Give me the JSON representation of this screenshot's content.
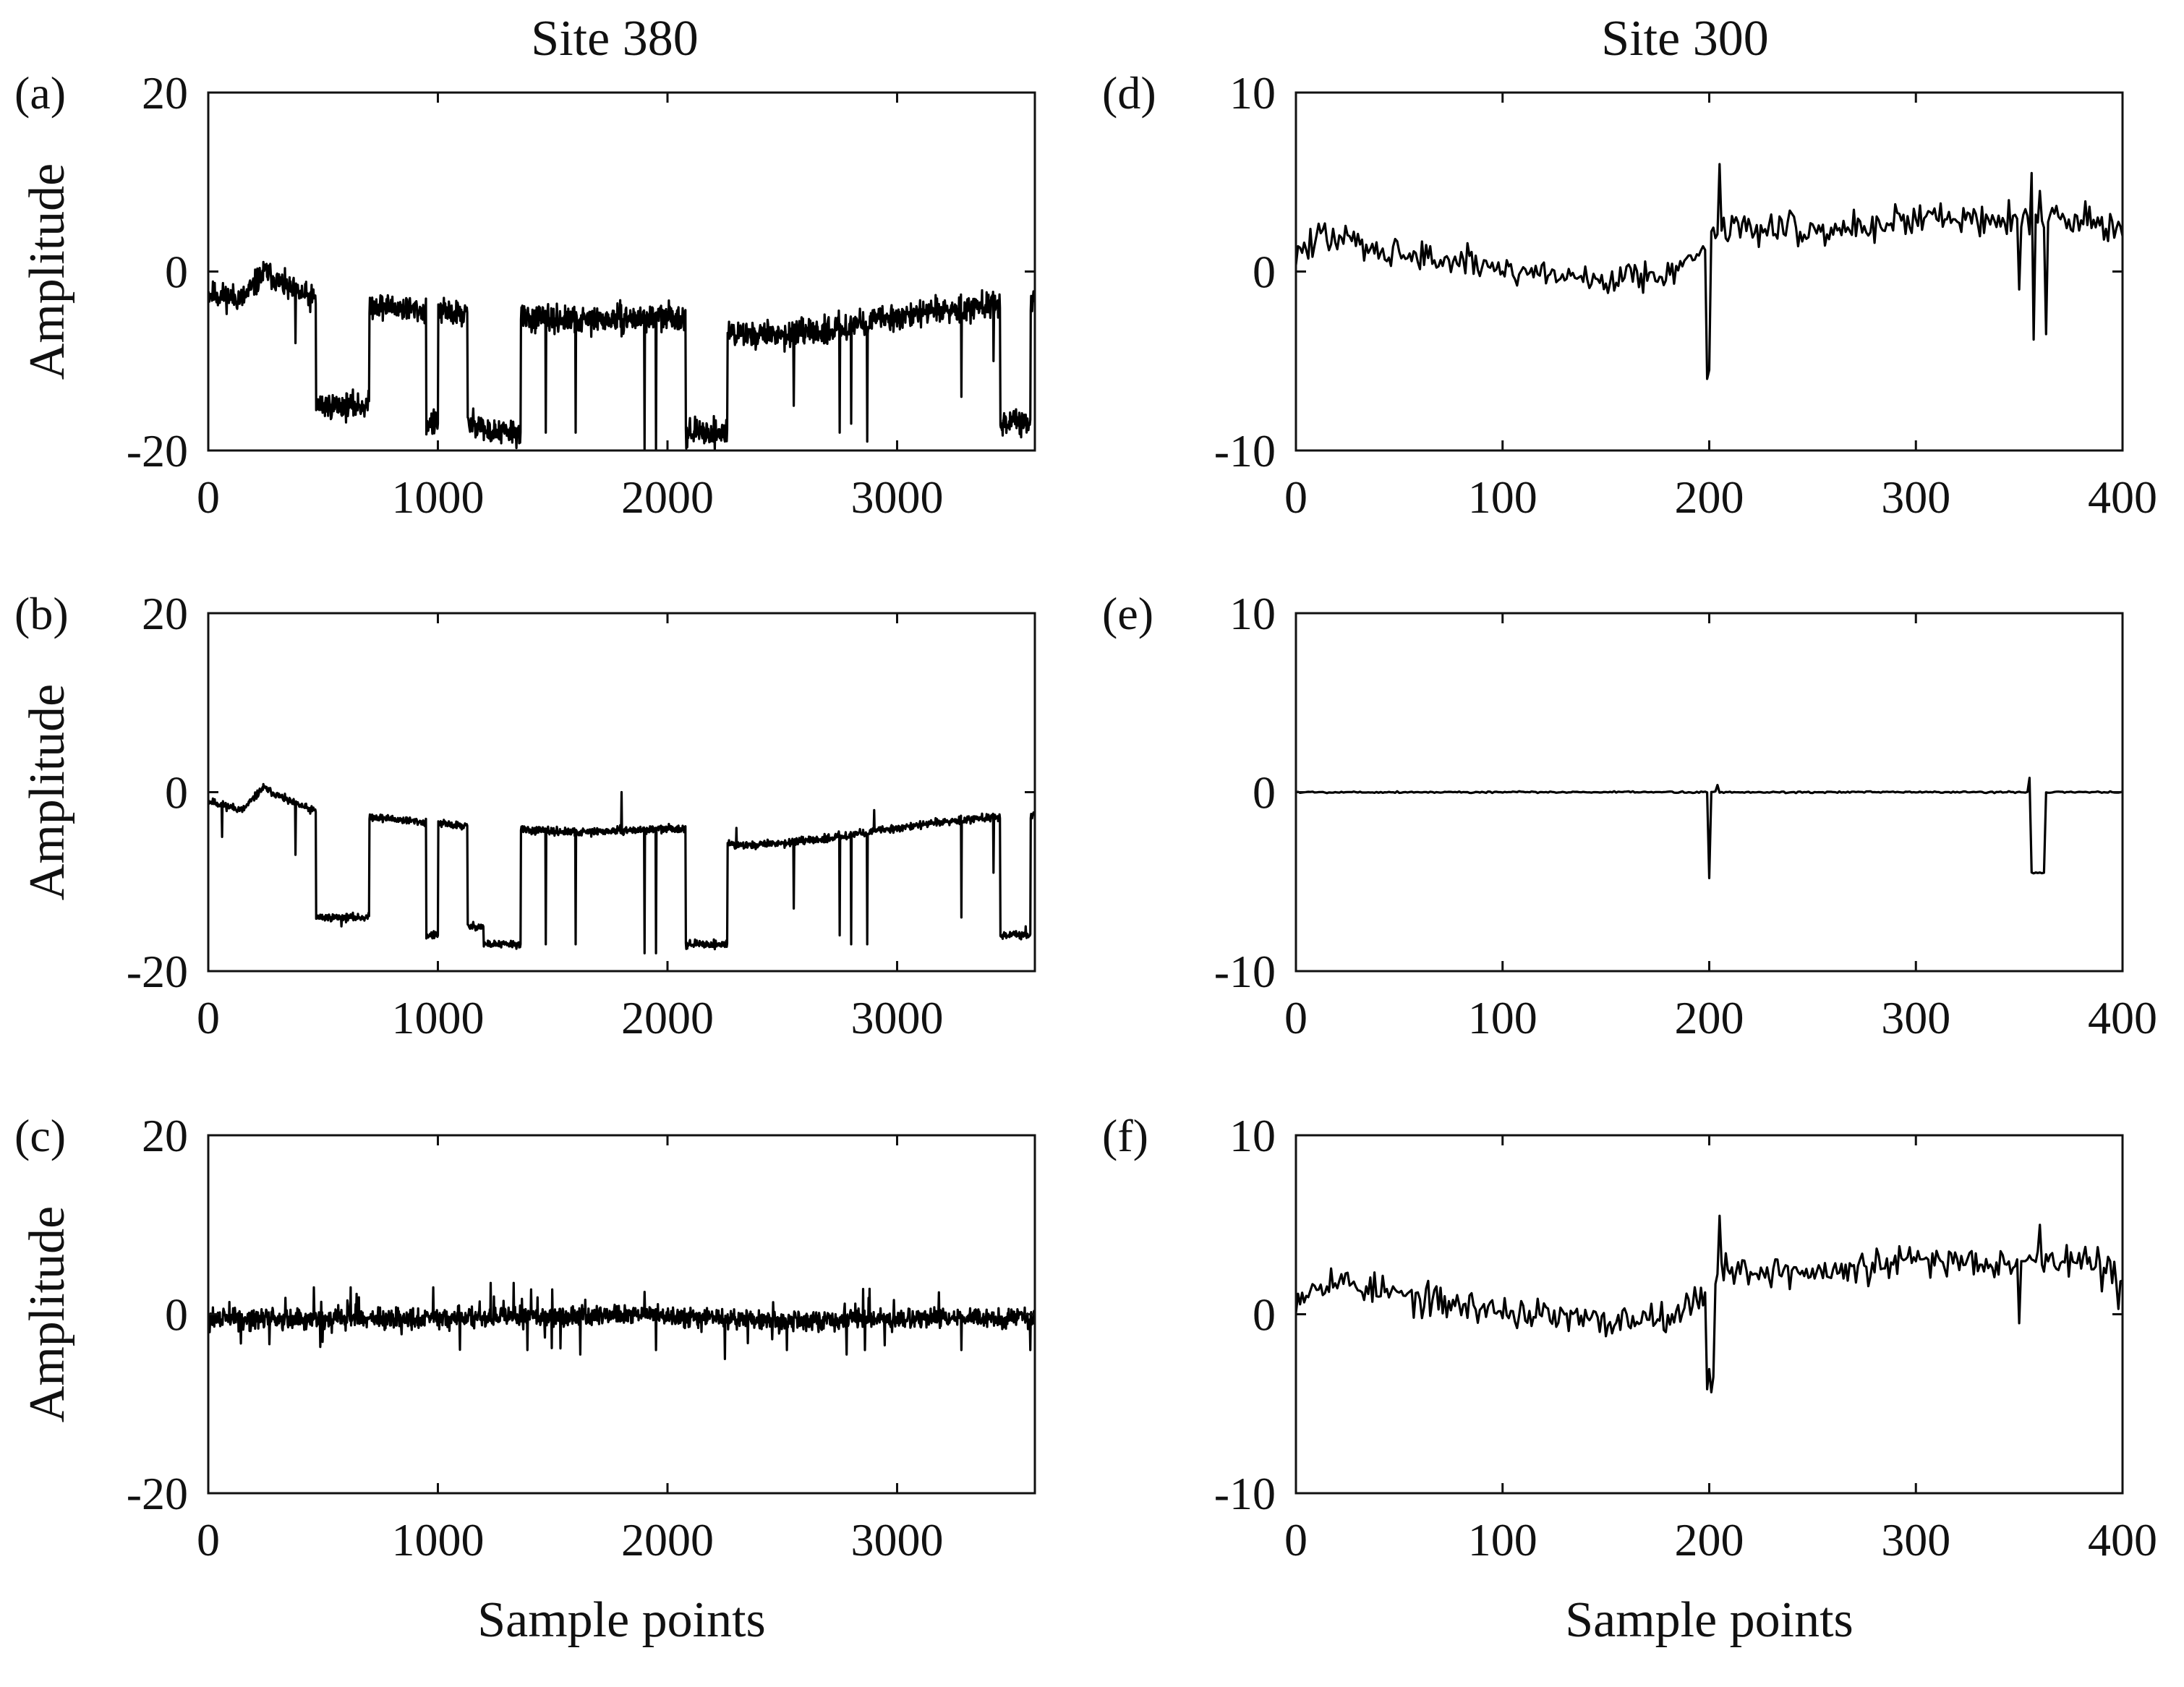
{
  "figure": {
    "left_title": "Site 380",
    "right_title": "Site 300",
    "ylabel": "Amplitude",
    "xlabel": "Sample points",
    "line_color": "#000000",
    "axis_color": "#111111"
  },
  "chart_data": [
    {
      "panel": "(a)",
      "site": "Site 380",
      "type": "line",
      "xlim": [
        0,
        3600
      ],
      "ylim": [
        -20,
        20
      ],
      "xticks": [
        "0",
        "1000",
        "2000",
        "3000"
      ],
      "yticks": [
        "20",
        "0",
        "-20"
      ],
      "ylabel": "Amplitude",
      "xlabel": "",
      "pattern": "base",
      "noise": 1.2,
      "seed": 11,
      "baseline": [
        [
          0,
          -2.5
        ],
        [
          150,
          -3
        ],
        [
          250,
          0
        ],
        [
          350,
          -2
        ],
        [
          450,
          -3
        ],
        [
          800,
          -4
        ],
        [
          1200,
          -5
        ],
        [
          1600,
          -5.5
        ],
        [
          2100,
          -5
        ],
        [
          2300,
          -7
        ],
        [
          2600,
          -7
        ],
        [
          3000,
          -5
        ],
        [
          3300,
          -4
        ],
        [
          3600,
          -3
        ]
      ],
      "segments": [
        [
          470,
          700,
          -15
        ],
        [
          950,
          1000,
          -17
        ],
        [
          1130,
          1200,
          -17
        ],
        [
          1200,
          1360,
          -18
        ],
        [
          2080,
          2260,
          -18
        ],
        [
          3450,
          3580,
          -17
        ]
      ],
      "spikes": [
        [
          380,
          -8
        ],
        [
          580,
          -16
        ],
        [
          1000,
          -17
        ],
        [
          1470,
          -18
        ],
        [
          1600,
          -18
        ],
        [
          1900,
          -20
        ],
        [
          1950,
          -20
        ],
        [
          2550,
          -15
        ],
        [
          2750,
          -18
        ],
        [
          2800,
          -17
        ],
        [
          2870,
          -19
        ],
        [
          3280,
          -14
        ],
        [
          3420,
          -10
        ],
        [
          3560,
          -16
        ]
      ]
    },
    {
      "panel": "(b)",
      "site": "Site 380",
      "type": "line",
      "xlim": [
        0,
        3600
      ],
      "ylim": [
        -20,
        20
      ],
      "xticks": [
        "0",
        "1000",
        "2000",
        "3000"
      ],
      "yticks": [
        "20",
        "0",
        "-20"
      ],
      "ylabel": "Amplitude",
      "xlabel": "",
      "pattern": "base",
      "noise": 0.35,
      "seed": 11,
      "baseline": [
        [
          0,
          -1
        ],
        [
          150,
          -2
        ],
        [
          240,
          0.5
        ],
        [
          350,
          -1
        ],
        [
          450,
          -2
        ],
        [
          800,
          -3
        ],
        [
          1200,
          -4
        ],
        [
          1600,
          -4.5
        ],
        [
          2100,
          -4
        ],
        [
          2300,
          -6
        ],
        [
          2600,
          -5.5
        ],
        [
          3000,
          -4
        ],
        [
          3300,
          -3
        ],
        [
          3600,
          -2.5
        ]
      ],
      "segments": [
        [
          470,
          700,
          -14
        ],
        [
          950,
          1000,
          -16
        ],
        [
          1130,
          1200,
          -15
        ],
        [
          1200,
          1360,
          -17
        ],
        [
          2080,
          2260,
          -17
        ],
        [
          3450,
          3580,
          -16
        ]
      ],
      "spikes": [
        [
          60,
          -5
        ],
        [
          380,
          -7
        ],
        [
          580,
          -15
        ],
        [
          1000,
          -16
        ],
        [
          1470,
          -17
        ],
        [
          1600,
          -17
        ],
        [
          1900,
          -18
        ],
        [
          1950,
          -18
        ],
        [
          2550,
          -13
        ],
        [
          2750,
          -16
        ],
        [
          2800,
          -17
        ],
        [
          2870,
          -17
        ],
        [
          3280,
          -14
        ],
        [
          3420,
          -9
        ],
        [
          3560,
          -15
        ],
        [
          1800,
          0
        ],
        [
          2300,
          -4
        ],
        [
          2900,
          -2
        ]
      ]
    },
    {
      "panel": "(c)",
      "site": "Site 380",
      "type": "line",
      "xlim": [
        0,
        3600
      ],
      "ylim": [
        -20,
        20
      ],
      "xticks": [
        "0",
        "1000",
        "2000",
        "3000"
      ],
      "yticks": [
        "20",
        "0",
        "-20"
      ],
      "ylabel": "Amplitude",
      "xlabel": "Sample points",
      "pattern": "noise",
      "noise": 0.9,
      "seed": 29,
      "baseline": [
        [
          0,
          -0.5
        ],
        [
          1000,
          -0.5
        ],
        [
          1900,
          0
        ],
        [
          2400,
          -0.8
        ],
        [
          3600,
          -0.3
        ]
      ],
      "segments": [],
      "spikes": [
        [
          460,
          3
        ],
        [
          620,
          3
        ],
        [
          980,
          3
        ],
        [
          1230,
          3.5
        ],
        [
          1330,
          3.5
        ],
        [
          1390,
          -4
        ],
        [
          1620,
          -4.5
        ],
        [
          1900,
          2.5
        ],
        [
          1950,
          -4
        ],
        [
          2250,
          -5
        ],
        [
          2520,
          -4
        ],
        [
          2780,
          -4.5
        ],
        [
          2860,
          -4
        ],
        [
          3280,
          -4
        ],
        [
          3580,
          -4
        ]
      ]
    },
    {
      "panel": "(d)",
      "site": "Site 300",
      "type": "line",
      "xlim": [
        0,
        400
      ],
      "ylim": [
        -10,
        10
      ],
      "xticks": [
        "0",
        "100",
        "200",
        "300",
        "400"
      ],
      "yticks": [
        "10",
        "0",
        "-10"
      ],
      "ylabel": "",
      "xlabel": "",
      "pattern": "base",
      "noise": 0.75,
      "seed": 47,
      "baseline": [
        [
          0,
          1
        ],
        [
          15,
          2
        ],
        [
          60,
          0.8
        ],
        [
          100,
          0.2
        ],
        [
          150,
          -0.5
        ],
        [
          190,
          0.3
        ],
        [
          205,
          2.5
        ],
        [
          260,
          2.3
        ],
        [
          300,
          3
        ],
        [
          340,
          3
        ],
        [
          380,
          3
        ],
        [
          400,
          2
        ]
      ],
      "segments": [],
      "spikes": [
        [
          199,
          -6
        ],
        [
          200,
          -5.5
        ],
        [
          205,
          6
        ],
        [
          350,
          -1
        ],
        [
          356,
          5.5
        ],
        [
          357,
          -3.8
        ],
        [
          363,
          -3.5
        ],
        [
          360,
          4.5
        ]
      ]
    },
    {
      "panel": "(e)",
      "site": "Site 300",
      "type": "line",
      "xlim": [
        0,
        400
      ],
      "ylim": [
        -10,
        10
      ],
      "xticks": [
        "0",
        "100",
        "200",
        "300",
        "400"
      ],
      "yticks": [
        "10",
        "0",
        "-10"
      ],
      "ylabel": "",
      "xlabel": "",
      "pattern": "flat",
      "noise": 0.04,
      "seed": 5,
      "baseline": [
        [
          0,
          0
        ],
        [
          400,
          0
        ]
      ],
      "segments": [
        [
          356,
          362,
          -4.5
        ]
      ],
      "spikes": [
        [
          200,
          -4.8
        ],
        [
          204,
          0.4
        ],
        [
          355,
          0.8
        ]
      ]
    },
    {
      "panel": "(f)",
      "site": "Site 300",
      "type": "line",
      "xlim": [
        0,
        400
      ],
      "ylim": [
        -10,
        10
      ],
      "xticks": [
        "0",
        "100",
        "200",
        "300",
        "400"
      ],
      "yticks": [
        "10",
        "0",
        "-10"
      ],
      "ylabel": "",
      "xlabel": "Sample points",
      "pattern": "base",
      "noise": 0.75,
      "seed": 53,
      "baseline": [
        [
          0,
          1
        ],
        [
          15,
          2
        ],
        [
          60,
          0.8
        ],
        [
          100,
          0.2
        ],
        [
          150,
          -0.5
        ],
        [
          190,
          0.3
        ],
        [
          205,
          2.5
        ],
        [
          260,
          2.3
        ],
        [
          300,
          3
        ],
        [
          340,
          3
        ],
        [
          380,
          3
        ],
        [
          400,
          2
        ]
      ],
      "segments": [
        [
          199,
          202,
          -3.8
        ]
      ],
      "spikes": [
        [
          205,
          5.5
        ],
        [
          350,
          -0.5
        ],
        [
          360,
          5
        ],
        [
          398,
          0.3
        ]
      ]
    }
  ]
}
